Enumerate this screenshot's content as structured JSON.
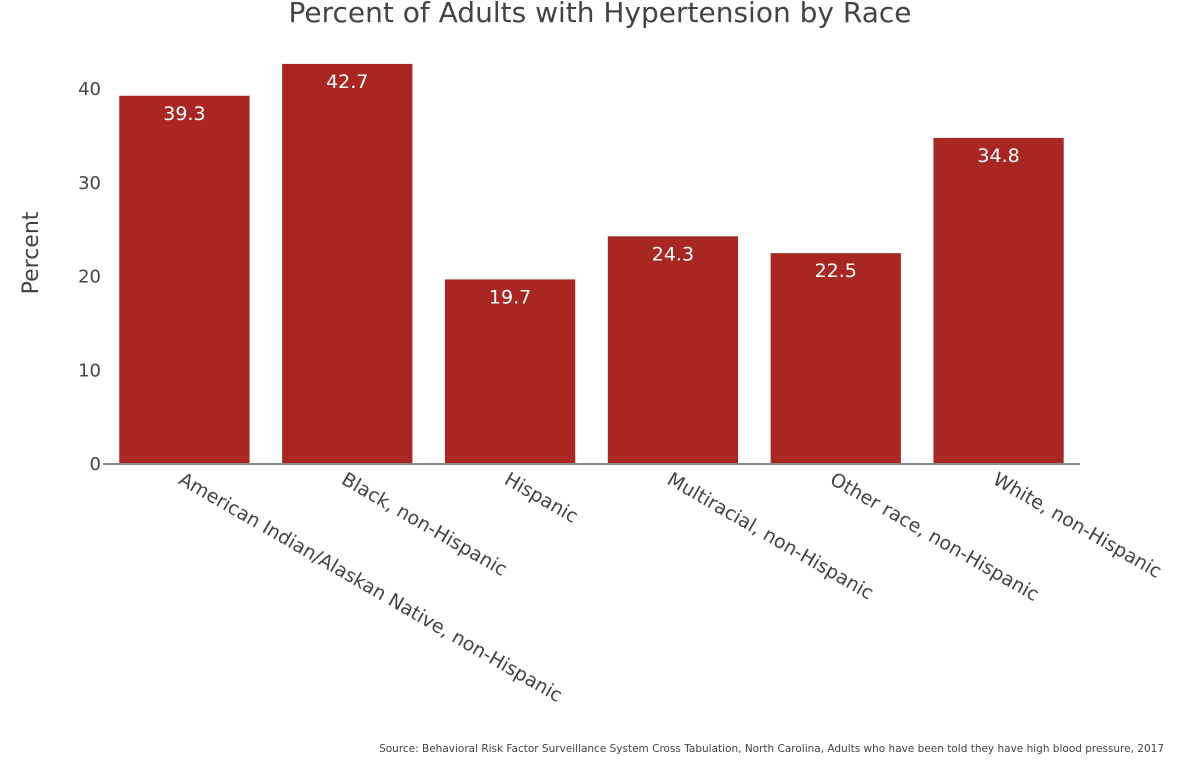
{
  "colors": {
    "bar": "#a92723",
    "axis": "#888888",
    "text": "#444444",
    "data_label": "#ffffff",
    "background": "#ffffff"
  },
  "chart_data": {
    "type": "bar",
    "title": "Percent of Adults with Hypertension by Race",
    "xlabel": "",
    "ylabel": "Percent",
    "ylim": [
      0,
      45
    ],
    "yticks": [
      "0",
      "10",
      "20",
      "30",
      "40"
    ],
    "grid": false,
    "categories": [
      "American Indian/Alaskan Native, non-Hispanic",
      "Black, non-Hispanic",
      "Hispanic",
      "Multiracial, non-Hispanic",
      "Other race, non-Hispanic",
      "White, non-Hispanic"
    ],
    "values": [
      39.3,
      42.7,
      19.7,
      24.3,
      22.5,
      34.8
    ],
    "data_labels": [
      "39.3",
      "42.7",
      "19.7",
      "24.3",
      "22.5",
      "34.8"
    ],
    "source": "Source: Behavioral Risk Factor Surveillance System Cross Tabulation, North Carolina, Adults who have been told they have high blood pressure, 2017"
  }
}
